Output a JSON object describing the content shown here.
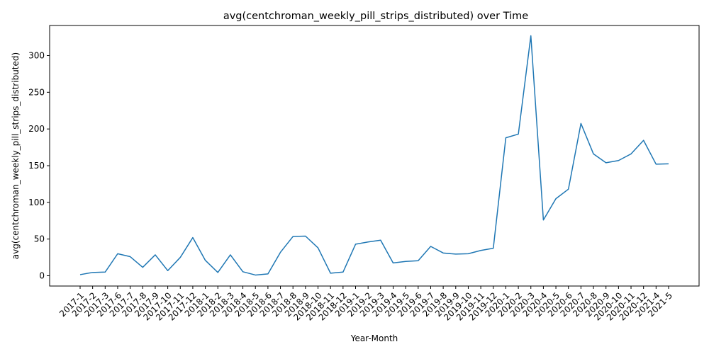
{
  "chart_data": {
    "type": "line",
    "title": "avg(centchroman_weekly_pill_strips_distributed) over Time",
    "xlabel": "Year-Month",
    "ylabel": "avg(centchroman_weekly_pill_strips_distributed)",
    "ylim": [
      -14,
      341
    ],
    "yticks": [
      0,
      50,
      100,
      150,
      200,
      250,
      300
    ],
    "grid": false,
    "legend": "none",
    "line_color": "#1f77b4",
    "categories": [
      "2017-1",
      "2017-2",
      "2017-3",
      "2017-6",
      "2017-7",
      "2017-8",
      "2017-9",
      "2017-10",
      "2017-11",
      "2017-12",
      "2018-1",
      "2018-2",
      "2018-3",
      "2018-4",
      "2018-5",
      "2018-6",
      "2018-7",
      "2018-8",
      "2018-9",
      "2018-10",
      "2018-11",
      "2018-12",
      "2019-1",
      "2019-2",
      "2019-3",
      "2019-4",
      "2019-5",
      "2019-6",
      "2019-7",
      "2019-8",
      "2019-9",
      "2019-10",
      "2019-11",
      "2019-12",
      "2020-1",
      "2020-2",
      "2020-3",
      "2020-4",
      "2020-5",
      "2020-6",
      "2020-7",
      "2020-8",
      "2020-9",
      "2020-10",
      "2020-11",
      "2020-12",
      "2021-4",
      "2021-5"
    ],
    "values": [
      1.5,
      4.5,
      5,
      30,
      26,
      11.5,
      28.5,
      7,
      25,
      52,
      21,
      4.5,
      28.5,
      5.5,
      1,
      2.5,
      32,
      53.5,
      54,
      38,
      3.5,
      5,
      43,
      46,
      48.5,
      17.5,
      19.5,
      20.5,
      40,
      31,
      29.5,
      30,
      34.5,
      37.5,
      188,
      193,
      327,
      76,
      105,
      118,
      207.5,
      166,
      154,
      157,
      166,
      184.5,
      152,
      152.5
    ]
  }
}
